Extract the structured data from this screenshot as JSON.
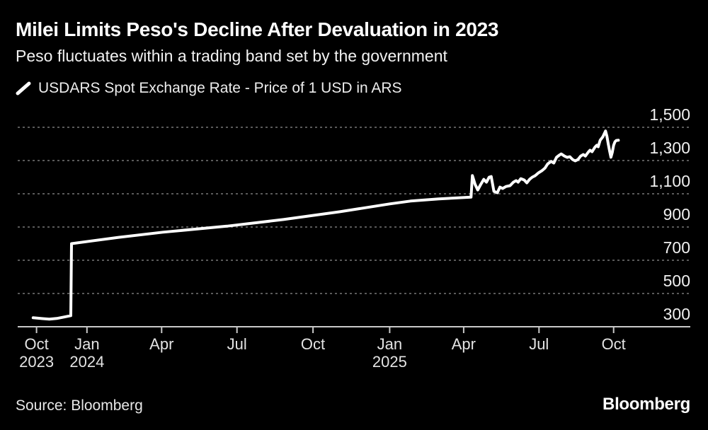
{
  "header": {
    "title": "Milei Limits Peso's Decline After Devaluation in 2023",
    "subtitle": "Peso fluctuates within a trading band set by the government"
  },
  "legend": {
    "label": "USDARS Spot Exchange Rate - Price of 1 USD in ARS"
  },
  "footer": {
    "source": "Source: Bloomberg",
    "brand": "Bloomberg"
  },
  "colors": {
    "background": "#000000",
    "line": "#ffffff",
    "grid": "#5a5a5a",
    "axis": "#c9c9c9",
    "y_labels": "#f0f0f0",
    "x_labels": "#e3e3e3"
  },
  "chart_data": {
    "type": "line",
    "title": "Milei Limits Peso's Decline After Devaluation in 2023",
    "xlabel": "",
    "ylabel": "Price of 1 USD in ARS",
    "x_domain_note": "Oct 2023 - Oct 2025, x given as fraction of plot width",
    "ylim": [
      300,
      1500
    ],
    "grid": "dashed horizontal",
    "legend_position": "top-left",
    "y_ticks": [
      {
        "v": 300,
        "label": "300"
      },
      {
        "v": 500,
        "label": "500"
      },
      {
        "v": 700,
        "label": "700"
      },
      {
        "v": 900,
        "label": "900"
      },
      {
        "v": 1100,
        "label": "1,100"
      },
      {
        "v": 1300,
        "label": "1,300"
      },
      {
        "v": 1500,
        "label": "1,500"
      }
    ],
    "x_ticks": [
      {
        "f": 0.028,
        "label": "Oct",
        "sublabel": "2023"
      },
      {
        "f": 0.103,
        "label": "Jan",
        "sublabel": "2024"
      },
      {
        "f": 0.214,
        "label": "Apr",
        "sublabel": ""
      },
      {
        "f": 0.326,
        "label": "Jul",
        "sublabel": ""
      },
      {
        "f": 0.439,
        "label": "Oct",
        "sublabel": ""
      },
      {
        "f": 0.553,
        "label": "Jan",
        "sublabel": "2025"
      },
      {
        "f": 0.663,
        "label": "Apr",
        "sublabel": ""
      },
      {
        "f": 0.775,
        "label": "Jul",
        "sublabel": ""
      },
      {
        "f": 0.886,
        "label": "Oct",
        "sublabel": ""
      }
    ],
    "series": [
      {
        "name": "USDARS Spot Exchange Rate - Price of 1 USD in ARS",
        "color": "#ffffff",
        "points": [
          [
            0.023,
            354
          ],
          [
            0.037,
            349
          ],
          [
            0.047,
            346
          ],
          [
            0.058,
            350
          ],
          [
            0.068,
            358
          ],
          [
            0.079,
            367
          ],
          [
            0.08,
            800
          ],
          [
            0.15,
            838
          ],
          [
            0.216,
            869
          ],
          [
            0.311,
            905
          ],
          [
            0.395,
            945
          ],
          [
            0.479,
            992
          ],
          [
            0.553,
            1039
          ],
          [
            0.584,
            1056
          ],
          [
            0.626,
            1069
          ],
          [
            0.674,
            1080
          ],
          [
            0.676,
            1210
          ],
          [
            0.68,
            1157
          ],
          [
            0.684,
            1123
          ],
          [
            0.688,
            1153
          ],
          [
            0.693,
            1187
          ],
          [
            0.697,
            1170
          ],
          [
            0.701,
            1200
          ],
          [
            0.704,
            1204
          ],
          [
            0.708,
            1115
          ],
          [
            0.713,
            1106
          ],
          [
            0.717,
            1140
          ],
          [
            0.721,
            1132
          ],
          [
            0.726,
            1144
          ],
          [
            0.732,
            1149
          ],
          [
            0.737,
            1170
          ],
          [
            0.741,
            1179
          ],
          [
            0.744,
            1170
          ],
          [
            0.748,
            1191
          ],
          [
            0.753,
            1183
          ],
          [
            0.757,
            1166
          ],
          [
            0.761,
            1187
          ],
          [
            0.765,
            1200
          ],
          [
            0.769,
            1208
          ],
          [
            0.774,
            1225
          ],
          [
            0.779,
            1238
          ],
          [
            0.784,
            1255
          ],
          [
            0.788,
            1280
          ],
          [
            0.793,
            1295
          ],
          [
            0.797,
            1285
          ],
          [
            0.801,
            1319
          ],
          [
            0.805,
            1332
          ],
          [
            0.808,
            1340
          ],
          [
            0.813,
            1327
          ],
          [
            0.817,
            1319
          ],
          [
            0.821,
            1323
          ],
          [
            0.825,
            1306
          ],
          [
            0.829,
            1298
          ],
          [
            0.833,
            1306
          ],
          [
            0.837,
            1327
          ],
          [
            0.841,
            1336
          ],
          [
            0.844,
            1327
          ],
          [
            0.848,
            1349
          ],
          [
            0.851,
            1362
          ],
          [
            0.854,
            1353
          ],
          [
            0.858,
            1379
          ],
          [
            0.861,
            1392
          ],
          [
            0.863,
            1383
          ],
          [
            0.866,
            1422
          ],
          [
            0.87,
            1443
          ],
          [
            0.874,
            1478
          ],
          [
            0.876,
            1447
          ],
          [
            0.878,
            1400
          ],
          [
            0.88,
            1358
          ],
          [
            0.882,
            1320
          ],
          [
            0.884,
            1349
          ],
          [
            0.886,
            1392
          ],
          [
            0.888,
            1413
          ],
          [
            0.89,
            1421
          ],
          [
            0.893,
            1422
          ]
        ]
      }
    ]
  }
}
